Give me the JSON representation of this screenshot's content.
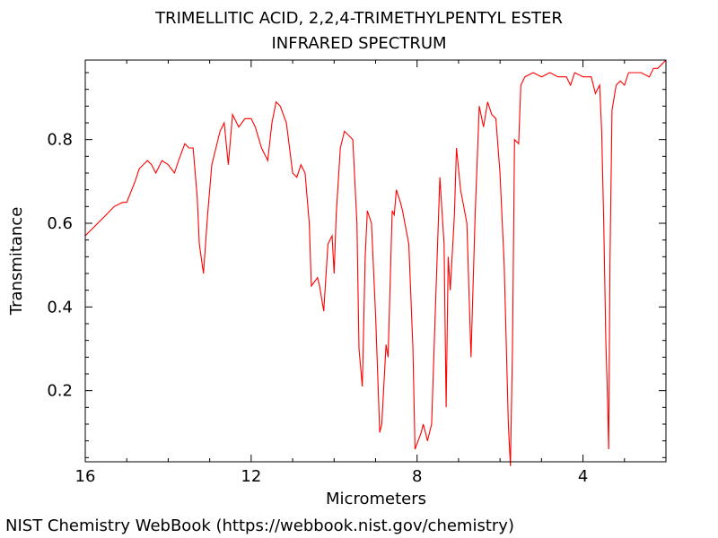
{
  "chart_data": {
    "type": "line",
    "title": "TRIMELLITIC ACID, 2,2,4-TRIMETHYLPENTYL ESTER",
    "subtitle": "INFRARED SPECTRUM",
    "xlabel": "Micrometers",
    "ylabel": "Transmitance",
    "xlim": [
      16,
      2
    ],
    "ylim": [
      0.03,
      0.99
    ],
    "x_ticks": [
      16,
      12,
      8,
      4
    ],
    "x_tick_labels": [
      "16",
      "12",
      "8",
      "4"
    ],
    "y_ticks": [
      0.2,
      0.4,
      0.6,
      0.8
    ],
    "y_tick_labels": [
      "0.2",
      "0.4",
      "0.6",
      "0.8"
    ],
    "grid": false,
    "line_color": "#ff0000",
    "series": [
      {
        "x": [
          16.0,
          15.9,
          15.7,
          15.5,
          15.3,
          15.1,
          15.0,
          14.8,
          14.7,
          14.5,
          14.4,
          14.3,
          14.15,
          14.0,
          13.85,
          13.75,
          13.6,
          13.5,
          13.4,
          13.3,
          13.25,
          13.15,
          13.05,
          12.95,
          12.75,
          12.65,
          12.55,
          12.45,
          12.3,
          12.15,
          12.0,
          11.9,
          11.75,
          11.6,
          11.5,
          11.4,
          11.3,
          11.15,
          11.0,
          10.9,
          10.8,
          10.7,
          10.6,
          10.55,
          10.4,
          10.35,
          10.25,
          10.15,
          10.05,
          10.0,
          9.95,
          9.85,
          9.75,
          9.55,
          9.45,
          9.4,
          9.32,
          9.25,
          9.2,
          9.1,
          9.0,
          8.9,
          8.85,
          8.75,
          8.7,
          8.6,
          8.55,
          8.5,
          8.4,
          8.35,
          8.2,
          8.1,
          8.05,
          7.9,
          7.85,
          7.8,
          7.75,
          7.65,
          7.55,
          7.45,
          7.35,
          7.3,
          7.25,
          7.2,
          7.1,
          7.05,
          6.95,
          6.8,
          6.7,
          6.6,
          6.5,
          6.4,
          6.3,
          6.2,
          6.1,
          6.0,
          5.9,
          5.8,
          5.75,
          5.7,
          5.65,
          5.55,
          5.5,
          5.4,
          5.2,
          5.0,
          4.8,
          4.6,
          4.4,
          4.3,
          4.2,
          4.0,
          3.8,
          3.7,
          3.6,
          3.55,
          3.5,
          3.45,
          3.42,
          3.38,
          3.35,
          3.3,
          3.2,
          3.1,
          3.0,
          2.9,
          2.8,
          2.6,
          2.4,
          2.3,
          2.2,
          2.1,
          2.0
        ],
        "y": [
          0.57,
          0.58,
          0.6,
          0.62,
          0.64,
          0.65,
          0.65,
          0.7,
          0.73,
          0.75,
          0.74,
          0.72,
          0.75,
          0.74,
          0.72,
          0.75,
          0.79,
          0.78,
          0.78,
          0.66,
          0.55,
          0.48,
          0.62,
          0.74,
          0.82,
          0.84,
          0.74,
          0.86,
          0.83,
          0.85,
          0.85,
          0.83,
          0.78,
          0.75,
          0.84,
          0.89,
          0.88,
          0.84,
          0.72,
          0.71,
          0.74,
          0.72,
          0.6,
          0.45,
          0.47,
          0.45,
          0.39,
          0.55,
          0.57,
          0.48,
          0.62,
          0.78,
          0.82,
          0.8,
          0.6,
          0.3,
          0.21,
          0.52,
          0.63,
          0.6,
          0.38,
          0.1,
          0.12,
          0.31,
          0.28,
          0.63,
          0.62,
          0.68,
          0.65,
          0.63,
          0.55,
          0.3,
          0.06,
          0.1,
          0.12,
          0.1,
          0.08,
          0.12,
          0.42,
          0.71,
          0.55,
          0.16,
          0.52,
          0.44,
          0.62,
          0.78,
          0.68,
          0.6,
          0.28,
          0.62,
          0.88,
          0.83,
          0.89,
          0.86,
          0.85,
          0.72,
          0.5,
          0.12,
          0.02,
          0.3,
          0.8,
          0.79,
          0.93,
          0.95,
          0.96,
          0.95,
          0.96,
          0.95,
          0.95,
          0.93,
          0.96,
          0.95,
          0.95,
          0.91,
          0.93,
          0.82,
          0.6,
          0.32,
          0.22,
          0.06,
          0.5,
          0.87,
          0.93,
          0.94,
          0.93,
          0.96,
          0.96,
          0.96,
          0.95,
          0.97,
          0.97,
          0.98,
          0.99
        ]
      }
    ]
  },
  "footer": "NIST Chemistry WebBook (https://webbook.nist.gov/chemistry)"
}
